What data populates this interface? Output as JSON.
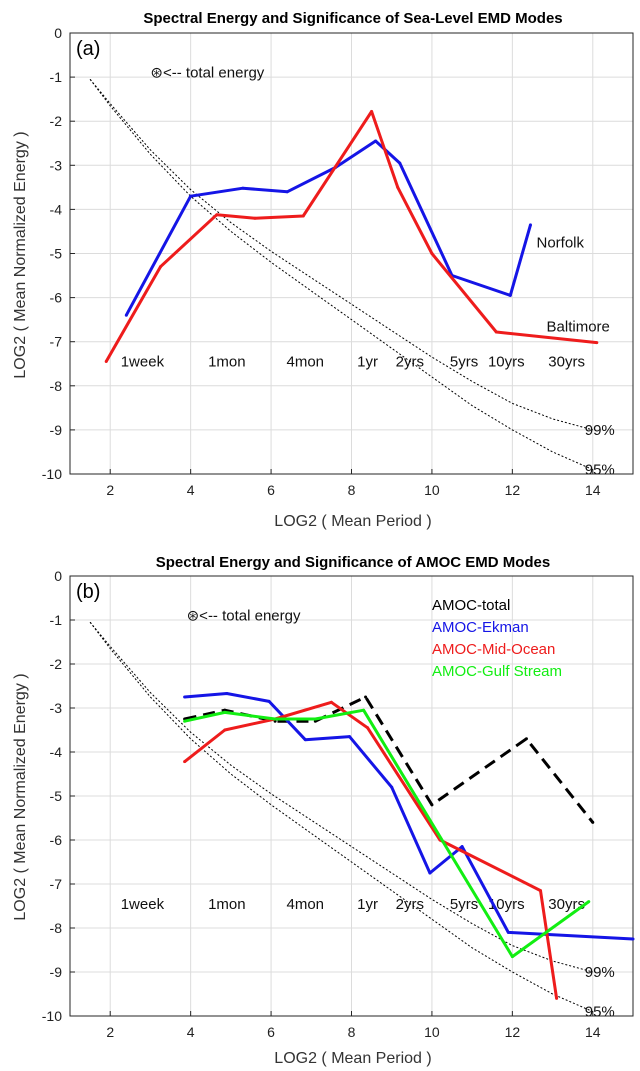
{
  "chart_data": [
    {
      "type": "line",
      "panel_label": "(a)",
      "title": "Spectral Energy and Significance of Sea-Level EMD Modes",
      "xlabel": "LOG2 ( Mean Period )",
      "ylabel": "LOG2 ( Mean Normalized Energy )",
      "xlim": [
        1,
        15
      ],
      "ylim": [
        -10,
        0
      ],
      "xticks": [
        2,
        4,
        6,
        8,
        10,
        12,
        14
      ],
      "yticks": [
        0,
        -1,
        -2,
        -3,
        -4,
        -5,
        -6,
        -7,
        -8,
        -9,
        -10
      ],
      "grid": true,
      "legend": "none",
      "energy_annotation": {
        "text": "⊛<-- total energy",
        "x": 3.0,
        "y": -0.9
      },
      "period_labels": [
        {
          "text": "1week",
          "x": 2.8,
          "y": -7.45
        },
        {
          "text": "1mon",
          "x": 4.9,
          "y": -7.45
        },
        {
          "text": "4mon",
          "x": 6.85,
          "y": -7.45
        },
        {
          "text": "1yr",
          "x": 8.4,
          "y": -7.45
        },
        {
          "text": "2yrs",
          "x": 9.45,
          "y": -7.45
        },
        {
          "text": "5yrs",
          "x": 10.8,
          "y": -7.45
        },
        {
          "text": "10yrs",
          "x": 11.85,
          "y": -7.45
        },
        {
          "text": "30yrs",
          "x": 13.35,
          "y": -7.45
        }
      ],
      "significance": [
        {
          "label": "99%",
          "label_x": 13.8,
          "label_y": -9.0,
          "x": [
            1.5,
            2,
            3,
            4,
            5,
            6,
            7,
            8,
            9,
            10,
            11,
            12,
            13,
            14
          ],
          "y": [
            -1.05,
            -1.6,
            -2.65,
            -3.55,
            -4.3,
            -4.95,
            -5.55,
            -6.15,
            -6.75,
            -7.35,
            -7.9,
            -8.4,
            -8.75,
            -9.0
          ]
        },
        {
          "label": "95%",
          "label_x": 13.8,
          "label_y": -9.9,
          "x": [
            1.5,
            2,
            3,
            4,
            5,
            6,
            7,
            8,
            9,
            10,
            11,
            12,
            13,
            14
          ],
          "y": [
            -1.05,
            -1.65,
            -2.75,
            -3.7,
            -4.5,
            -5.2,
            -5.85,
            -6.5,
            -7.15,
            -7.8,
            -8.45,
            -9.0,
            -9.5,
            -9.9
          ]
        }
      ],
      "series": [
        {
          "name": "Norfolk",
          "color": "#1515e6",
          "label_x": 12.6,
          "label_y": -4.75,
          "x": [
            2.4,
            4.0,
            5.3,
            6.4,
            7.6,
            8.6,
            9.2,
            10.5,
            11.95,
            12.45
          ],
          "y": [
            -6.4,
            -3.7,
            -3.52,
            -3.6,
            -3.05,
            -2.45,
            -2.95,
            -5.5,
            -5.95,
            -4.35
          ]
        },
        {
          "name": "Baltimore",
          "color": "#ee1c1c",
          "label_x": 12.85,
          "label_y": -6.65,
          "x": [
            1.9,
            3.25,
            4.65,
            5.6,
            6.8,
            8.5,
            9.15,
            10.0,
            11.6,
            14.1
          ],
          "y": [
            -7.45,
            -5.3,
            -4.12,
            -4.2,
            -4.15,
            -1.78,
            -3.5,
            -5.0,
            -6.78,
            -7.02
          ]
        }
      ]
    },
    {
      "type": "line",
      "panel_label": "(b)",
      "title": "Spectral Energy and Significance of AMOC EMD Modes",
      "xlabel": "LOG2 ( Mean Period )",
      "ylabel": "LOG2 ( Mean Normalized Energy )",
      "xlim": [
        1,
        15
      ],
      "ylim": [
        -10,
        0
      ],
      "xticks": [
        2,
        4,
        6,
        8,
        10,
        12,
        14
      ],
      "yticks": [
        0,
        -1,
        -2,
        -3,
        -4,
        -5,
        -6,
        -7,
        -8,
        -9,
        -10
      ],
      "grid": true,
      "legend": "top-right",
      "energy_annotation": {
        "text": "⊛<-- total energy",
        "x": 3.9,
        "y": -0.9
      },
      "period_labels": [
        {
          "text": "1week",
          "x": 2.8,
          "y": -7.45
        },
        {
          "text": "1mon",
          "x": 4.9,
          "y": -7.45
        },
        {
          "text": "4mon",
          "x": 6.85,
          "y": -7.45
        },
        {
          "text": "1yr",
          "x": 8.4,
          "y": -7.45
        },
        {
          "text": "2yrs",
          "x": 9.45,
          "y": -7.45
        },
        {
          "text": "5yrs",
          "x": 10.8,
          "y": -7.45
        },
        {
          "text": "10yrs",
          "x": 11.85,
          "y": -7.45
        },
        {
          "text": "30yrs",
          "x": 13.35,
          "y": -7.45
        }
      ],
      "significance": [
        {
          "label": "99%",
          "label_x": 13.8,
          "label_y": -9.0,
          "x": [
            1.5,
            2,
            3,
            4,
            5,
            6,
            7,
            8,
            9,
            10,
            11,
            12,
            13,
            14
          ],
          "y": [
            -1.05,
            -1.6,
            -2.65,
            -3.55,
            -4.3,
            -4.95,
            -5.55,
            -6.15,
            -6.75,
            -7.35,
            -7.9,
            -8.4,
            -8.75,
            -9.0
          ]
        },
        {
          "label": "95%",
          "label_x": 13.8,
          "label_y": -9.9,
          "x": [
            1.5,
            2,
            3,
            4,
            5,
            6,
            7,
            8,
            9,
            10,
            11,
            12,
            13,
            14
          ],
          "y": [
            -1.05,
            -1.65,
            -2.75,
            -3.7,
            -4.5,
            -5.2,
            -5.85,
            -6.5,
            -7.15,
            -7.8,
            -8.45,
            -9.0,
            -9.5,
            -9.9
          ]
        }
      ],
      "series": [
        {
          "name": "AMOC-total",
          "color": "#000000",
          "dash": true,
          "x": [
            3.85,
            4.85,
            6.1,
            7.1,
            8.35,
            10.0,
            12.35,
            14.0
          ],
          "y": [
            -3.25,
            -3.05,
            -3.3,
            -3.3,
            -2.75,
            -5.2,
            -3.7,
            -5.6
          ]
        },
        {
          "name": "AMOC-Ekman",
          "color": "#1515e6",
          "x": [
            3.85,
            4.9,
            5.95,
            6.85,
            7.95,
            9.0,
            9.95,
            10.75,
            11.9,
            15.0
          ],
          "y": [
            -2.75,
            -2.67,
            -2.85,
            -3.72,
            -3.65,
            -4.8,
            -6.75,
            -6.15,
            -8.1,
            -8.25
          ]
        },
        {
          "name": "AMOC-Mid-Ocean",
          "color": "#ee1c1c",
          "x": [
            3.85,
            4.85,
            6.1,
            7.5,
            8.4,
            10.2,
            12.7,
            13.1
          ],
          "y": [
            -4.22,
            -3.5,
            -3.25,
            -2.87,
            -3.45,
            -6.0,
            -7.15,
            -9.6
          ]
        },
        {
          "name": "AMOC-Gulf Stream",
          "color": "#12ee12",
          "x": [
            3.85,
            4.85,
            6.1,
            7.1,
            8.3,
            12.0,
            13.9
          ],
          "y": [
            -3.3,
            -3.1,
            -3.25,
            -3.25,
            -3.05,
            -8.65,
            -7.4
          ]
        }
      ]
    }
  ]
}
